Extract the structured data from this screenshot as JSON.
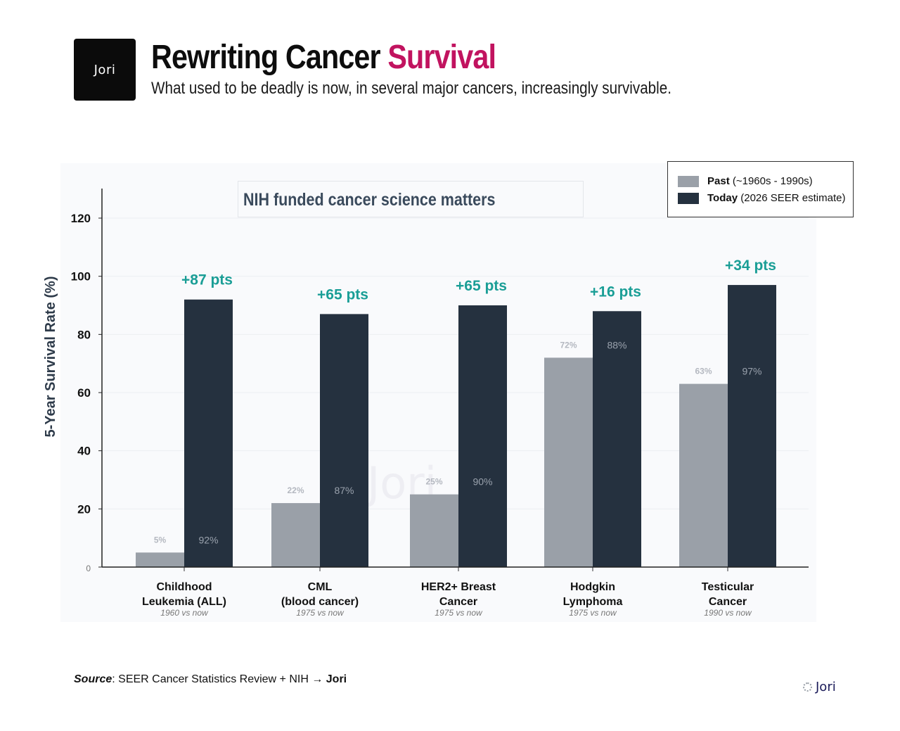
{
  "header": {
    "logo_text": "Jori",
    "title_main": "Rewriting Cancer ",
    "title_accent": "Survival",
    "subtitle": "What used to be deadly is now, in several major cancers, increasingly survivable.",
    "accent_color": "#c1135f"
  },
  "annotation_box": "NIH funded cancer science matters",
  "watermark": "Jori",
  "legend": {
    "items": [
      {
        "bold": "Past",
        "rest": " (~1960s - 1990s)",
        "color": "#9aa0a8"
      },
      {
        "bold": "Today",
        "rest": " (2026 SEER estimate)",
        "color": "#25313f"
      }
    ]
  },
  "chart_data": {
    "type": "bar",
    "title": "Rewriting Cancer Survival",
    "xlabel": "",
    "ylabel": "5-Year Survival Rate (%)",
    "ylim": [
      0,
      130
    ],
    "yticks": [
      0,
      20,
      40,
      60,
      80,
      100,
      120
    ],
    "grid": true,
    "legend_position": "top-right",
    "categories": [
      {
        "line1": "Childhood",
        "line2": "Leukemia (ALL)",
        "note": "1960 vs now"
      },
      {
        "line1": "CML",
        "line2": "(blood cancer)",
        "note": "1975 vs now"
      },
      {
        "line1": "HER2+ Breast",
        "line2": "Cancer",
        "note": "1975 vs now"
      },
      {
        "line1": "Hodgkin",
        "line2": "Lymphoma",
        "note": "1975 vs now"
      },
      {
        "line1": "Testicular",
        "line2": "Cancer",
        "note": "1990 vs now"
      }
    ],
    "series": [
      {
        "name": "Past (~1960s - 1990s)",
        "color": "#9aa0a8",
        "values": [
          5,
          22,
          25,
          72,
          63
        ],
        "labels": [
          "5%",
          "22%",
          "25%",
          "72%",
          "63%"
        ]
      },
      {
        "name": "Today (2026 SEER estimate)",
        "color": "#25313f",
        "values": [
          92,
          87,
          90,
          88,
          97
        ],
        "labels": [
          "92%",
          "87%",
          "90%",
          "88%",
          "97%"
        ]
      }
    ],
    "gain_labels": [
      "+87 pts",
      "+65 pts",
      "+65 pts",
      "+16 pts",
      "+34 pts"
    ],
    "gain_color": "#1a9e96"
  },
  "footer": {
    "source_label": "Source",
    "source_text": ": SEER Cancer Statistics Review + NIH → ",
    "source_brand": "Jori",
    "logo_text": "Jori"
  }
}
